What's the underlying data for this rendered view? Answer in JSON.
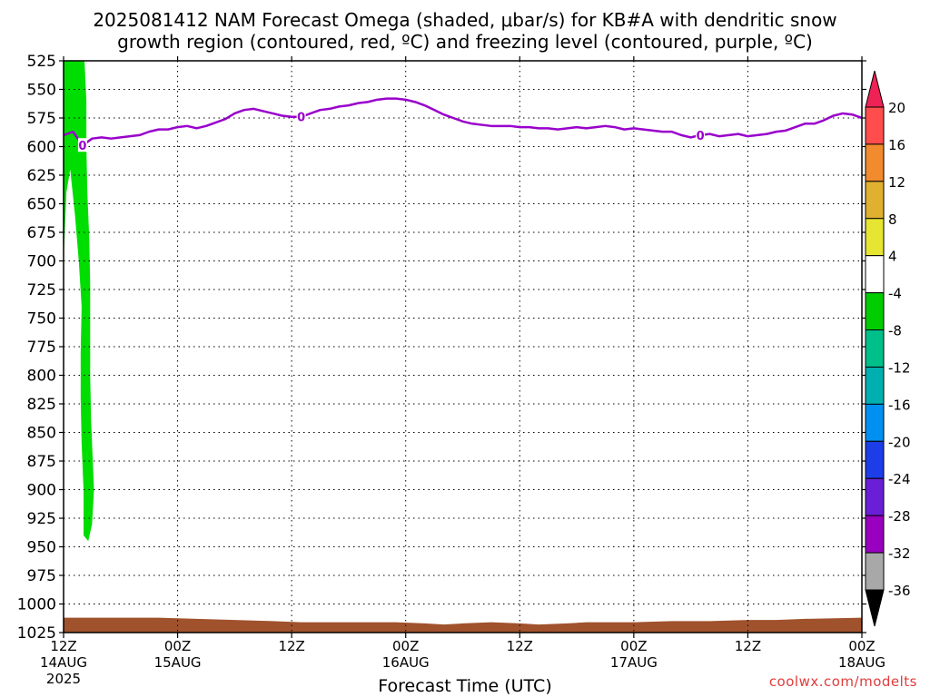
{
  "header": {
    "title_line1": "2025081412 NAM Forecast Omega (shaded, μbar/s) for KB#A with dendritic snow",
    "title_line2": "growth region (contoured, red, ºC) and freezing level (contoured, purple, ºC)"
  },
  "footer": {
    "credit": "coolwx.com/modelts"
  },
  "chart_data": {
    "type": "time-height",
    "xlabel": "Forecast Time (UTC)",
    "ylabel": "",
    "y_axis": {
      "inverted": true,
      "ylim": [
        1025,
        525
      ],
      "ticks": [
        525,
        550,
        575,
        600,
        625,
        650,
        675,
        700,
        725,
        750,
        775,
        800,
        825,
        850,
        875,
        900,
        925,
        950,
        975,
        1000,
        1025
      ]
    },
    "x_axis": {
      "xlim_hours": [
        0,
        84
      ],
      "ticks": [
        {
          "hour": 0,
          "l1": "12Z",
          "l2": "14AUG",
          "l3": "2025"
        },
        {
          "hour": 12,
          "l1": "00Z",
          "l2": "15AUG",
          "l3": ""
        },
        {
          "hour": 24,
          "l1": "12Z",
          "l2": "",
          "l3": ""
        },
        {
          "hour": 36,
          "l1": "00Z",
          "l2": "16AUG",
          "l3": ""
        },
        {
          "hour": 48,
          "l1": "12Z",
          "l2": "",
          "l3": ""
        },
        {
          "hour": 60,
          "l1": "00Z",
          "l2": "17AUG",
          "l3": ""
        },
        {
          "hour": 72,
          "l1": "12Z",
          "l2": "",
          "l3": ""
        },
        {
          "hour": 84,
          "l1": "00Z",
          "l2": "18AUG",
          "l3": ""
        }
      ]
    },
    "grid": true,
    "freezing_level": {
      "color": "#9900cc",
      "label": "0",
      "label_hours": [
        2,
        25,
        67
      ],
      "points": [
        [
          0,
          590
        ],
        [
          1,
          587
        ],
        [
          2,
          599
        ],
        [
          3,
          593
        ],
        [
          4,
          592
        ],
        [
          5,
          593
        ],
        [
          6,
          592
        ],
        [
          7,
          591
        ],
        [
          8,
          590
        ],
        [
          9,
          587
        ],
        [
          10,
          585
        ],
        [
          11,
          585
        ],
        [
          12,
          583
        ],
        [
          13,
          582
        ],
        [
          14,
          584
        ],
        [
          15,
          582
        ],
        [
          16,
          579
        ],
        [
          17,
          576
        ],
        [
          18,
          571
        ],
        [
          19,
          568
        ],
        [
          20,
          567
        ],
        [
          21,
          569
        ],
        [
          22,
          571
        ],
        [
          23,
          573
        ],
        [
          24,
          574
        ],
        [
          25,
          574
        ],
        [
          26,
          571
        ],
        [
          27,
          568
        ],
        [
          28,
          567
        ],
        [
          29,
          565
        ],
        [
          30,
          564
        ],
        [
          31,
          562
        ],
        [
          32,
          561
        ],
        [
          33,
          559
        ],
        [
          34,
          558
        ],
        [
          35,
          558
        ],
        [
          36,
          559
        ],
        [
          37,
          561
        ],
        [
          38,
          564
        ],
        [
          39,
          568
        ],
        [
          40,
          572
        ],
        [
          41,
          575
        ],
        [
          42,
          578
        ],
        [
          43,
          580
        ],
        [
          44,
          581
        ],
        [
          45,
          582
        ],
        [
          46,
          582
        ],
        [
          47,
          582
        ],
        [
          48,
          583
        ],
        [
          49,
          583
        ],
        [
          50,
          584
        ],
        [
          51,
          584
        ],
        [
          52,
          585
        ],
        [
          53,
          584
        ],
        [
          54,
          583
        ],
        [
          55,
          584
        ],
        [
          56,
          583
        ],
        [
          57,
          582
        ],
        [
          58,
          583
        ],
        [
          59,
          585
        ],
        [
          60,
          584
        ],
        [
          61,
          585
        ],
        [
          62,
          586
        ],
        [
          63,
          587
        ],
        [
          64,
          587
        ],
        [
          65,
          590
        ],
        [
          66,
          592
        ],
        [
          67,
          590
        ],
        [
          68,
          589
        ],
        [
          69,
          591
        ],
        [
          70,
          590
        ],
        [
          71,
          589
        ],
        [
          72,
          591
        ],
        [
          73,
          590
        ],
        [
          74,
          589
        ],
        [
          75,
          587
        ],
        [
          76,
          586
        ],
        [
          77,
          583
        ],
        [
          78,
          580
        ],
        [
          79,
          580
        ],
        [
          80,
          577
        ],
        [
          81,
          573
        ],
        [
          82,
          571
        ],
        [
          83,
          572
        ],
        [
          84,
          575
        ]
      ]
    },
    "omega_shading": {
      "color": "#00dd00",
      "band": "-8 to -4",
      "outline": [
        [
          0.0,
          525
        ],
        [
          2.2,
          525
        ],
        [
          2.4,
          560
        ],
        [
          2.4,
          600
        ],
        [
          2.5,
          640
        ],
        [
          2.7,
          680
        ],
        [
          2.8,
          720
        ],
        [
          2.8,
          760
        ],
        [
          2.8,
          800
        ],
        [
          2.9,
          840
        ],
        [
          3.1,
          880
        ],
        [
          3.2,
          900
        ],
        [
          3.0,
          930
        ],
        [
          2.6,
          945
        ],
        [
          2.1,
          940
        ],
        [
          2.1,
          900
        ],
        [
          1.9,
          860
        ],
        [
          1.8,
          820
        ],
        [
          1.8,
          780
        ],
        [
          1.9,
          740
        ],
        [
          1.6,
          700
        ],
        [
          1.2,
          660
        ],
        [
          0.7,
          620
        ],
        [
          0.3,
          640
        ],
        [
          0.1,
          680
        ],
        [
          0.0,
          700
        ]
      ]
    },
    "terrain": {
      "color": "#a0522d",
      "points": [
        [
          0,
          1012
        ],
        [
          5,
          1012
        ],
        [
          10,
          1012
        ],
        [
          14,
          1013
        ],
        [
          18,
          1014
        ],
        [
          22,
          1015
        ],
        [
          25,
          1016
        ],
        [
          30,
          1016
        ],
        [
          35,
          1016
        ],
        [
          38,
          1017
        ],
        [
          40,
          1018
        ],
        [
          42,
          1017
        ],
        [
          45,
          1016
        ],
        [
          48,
          1017
        ],
        [
          50,
          1018
        ],
        [
          53,
          1017
        ],
        [
          55,
          1016
        ],
        [
          60,
          1016
        ],
        [
          64,
          1015
        ],
        [
          68,
          1015
        ],
        [
          72,
          1014
        ],
        [
          75,
          1014
        ],
        [
          78,
          1013
        ],
        [
          84,
          1012
        ]
      ]
    },
    "colorbar": {
      "levels": [
        "20",
        "16",
        "12",
        "8",
        "4",
        "-4",
        "-8",
        "-12",
        "-16",
        "-20",
        "-24",
        "-28",
        "-32",
        "-36"
      ],
      "colors": [
        "#ee2255",
        "#ff4d4d",
        "#f28a2e",
        "#e0b030",
        "#e6e632",
        "#ffffff",
        "#00cc00",
        "#00c08a",
        "#00b0b0",
        "#0090f0",
        "#1c3de8",
        "#6a1fd6",
        "#9a00c0",
        "#a8a8a8",
        "#000000"
      ]
    }
  }
}
